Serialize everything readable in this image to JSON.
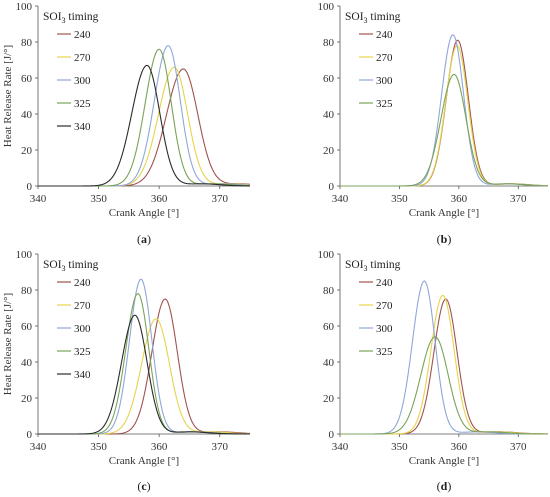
{
  "chart_data": [
    {
      "type": "line",
      "panel_label": "a",
      "xlabel": "Crank Angle [°]",
      "ylabel": "Heat Release Rate [J/°]",
      "xlim": [
        340,
        375
      ],
      "ylim": [
        0,
        100
      ],
      "xticks": [
        340,
        350,
        360,
        370
      ],
      "yticks": [
        0,
        20,
        40,
        60,
        80,
        100
      ],
      "legend_title": "SOI",
      "legend_title_sub": "3",
      "legend_title_rest": " timing",
      "legend_position": "top-left",
      "series": [
        {
          "name": "240",
          "color": "#a0524f",
          "peak_x": 364.0,
          "peak_y": 65,
          "sigma_left": 2.8,
          "sigma_right": 2.4
        },
        {
          "name": "270",
          "color": "#e5d44c",
          "peak_x": 362.5,
          "peak_y": 66,
          "sigma_left": 2.6,
          "sigma_right": 2.2
        },
        {
          "name": "300",
          "color": "#8fa7d8",
          "peak_x": 361.5,
          "peak_y": 78,
          "sigma_left": 2.3,
          "sigma_right": 2.0
        },
        {
          "name": "325",
          "color": "#7aa35a",
          "peak_x": 360.0,
          "peak_y": 76,
          "sigma_left": 2.3,
          "sigma_right": 2.0
        },
        {
          "name": "340",
          "color": "#2b2b2b",
          "peak_x": 358.0,
          "peak_y": 67,
          "sigma_left": 2.5,
          "sigma_right": 2.1
        }
      ]
    },
    {
      "type": "line",
      "panel_label": "b",
      "xlabel": "Crank Angle [°]",
      "ylabel": "",
      "xlim": [
        340,
        375
      ],
      "ylim": [
        0,
        100
      ],
      "xticks": [
        340,
        350,
        360,
        370
      ],
      "yticks": [
        0,
        20,
        40,
        60,
        80,
        100
      ],
      "legend_title": "SOI",
      "legend_title_sub": "3",
      "legend_title_rest": " timing",
      "legend_position": "top-left",
      "series": [
        {
          "name": "240",
          "color": "#a0524f",
          "peak_x": 359.8,
          "peak_y": 81,
          "sigma_left": 1.9,
          "sigma_right": 1.8
        },
        {
          "name": "270",
          "color": "#e5d44c",
          "peak_x": 359.7,
          "peak_y": 78,
          "sigma_left": 1.9,
          "sigma_right": 1.8
        },
        {
          "name": "300",
          "color": "#8fa7d8",
          "peak_x": 359.0,
          "peak_y": 84,
          "sigma_left": 1.9,
          "sigma_right": 1.8
        },
        {
          "name": "325",
          "color": "#7aa35a",
          "peak_x": 359.2,
          "peak_y": 62,
          "sigma_left": 2.2,
          "sigma_right": 2.0
        }
      ]
    },
    {
      "type": "line",
      "panel_label": "c",
      "xlabel": "Crank Angle [°]",
      "ylabel": "Heat Release Rate [J/°]",
      "xlim": [
        340,
        375
      ],
      "ylim": [
        0,
        100
      ],
      "xticks": [
        340,
        350,
        360,
        370
      ],
      "yticks": [
        0,
        20,
        40,
        60,
        80,
        100
      ],
      "legend_title": "SOI",
      "legend_title_sub": "3",
      "legend_title_rest": " timing",
      "legend_position": "top-left",
      "series": [
        {
          "name": "240",
          "color": "#a0524f",
          "peak_x": 361.0,
          "peak_y": 75,
          "sigma_left": 2.2,
          "sigma_right": 2.0
        },
        {
          "name": "270",
          "color": "#e5d44c",
          "peak_x": 359.5,
          "peak_y": 64,
          "sigma_left": 2.4,
          "sigma_right": 2.2
        },
        {
          "name": "300",
          "color": "#8fa7d8",
          "peak_x": 357.0,
          "peak_y": 86,
          "sigma_left": 1.9,
          "sigma_right": 1.8
        },
        {
          "name": "325",
          "color": "#7aa35a",
          "peak_x": 356.5,
          "peak_y": 78,
          "sigma_left": 2.0,
          "sigma_right": 1.8
        },
        {
          "name": "340",
          "color": "#2b2b2b",
          "peak_x": 356.0,
          "peak_y": 66,
          "sigma_left": 2.2,
          "sigma_right": 2.0
        }
      ]
    },
    {
      "type": "line",
      "panel_label": "d",
      "xlabel": "Crank Angle [°]",
      "ylabel": "",
      "xlim": [
        340,
        375
      ],
      "ylim": [
        0,
        100
      ],
      "xticks": [
        340,
        350,
        360,
        370
      ],
      "yticks": [
        0,
        20,
        40,
        60,
        80,
        100
      ],
      "legend_title": "SOI",
      "legend_title_sub": "3",
      "legend_title_rest": " timing",
      "legend_position": "top-left",
      "series": [
        {
          "name": "240",
          "color": "#a0524f",
          "peak_x": 357.8,
          "peak_y": 75,
          "sigma_left": 2.0,
          "sigma_right": 1.9
        },
        {
          "name": "270",
          "color": "#e5d44c",
          "peak_x": 357.3,
          "peak_y": 77,
          "sigma_left": 2.0,
          "sigma_right": 1.9
        },
        {
          "name": "300",
          "color": "#8fa7d8",
          "peak_x": 354.2,
          "peak_y": 85,
          "sigma_left": 2.0,
          "sigma_right": 1.8
        },
        {
          "name": "325",
          "color": "#7aa35a",
          "peak_x": 356.0,
          "peak_y": 54,
          "sigma_left": 2.4,
          "sigma_right": 2.2
        }
      ]
    }
  ]
}
